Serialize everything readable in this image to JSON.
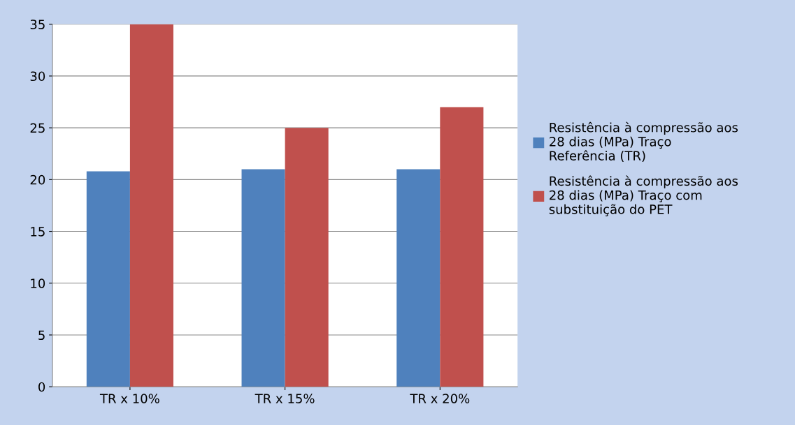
{
  "chart_data": {
    "type": "bar",
    "categories": [
      "TR x 10%",
      "TR x 15%",
      "TR x 20%"
    ],
    "series": [
      {
        "name": "Resistência à compressão aos 28 dias (MPa) Traço Referência (TR)",
        "color": "#4f81bd",
        "values": [
          20.8,
          21,
          21
        ]
      },
      {
        "name": "Resistência à compressão aos 28 dias (MPa) Traço com substituição do PET",
        "color": "#c0504d",
        "values": [
          35,
          25,
          27
        ]
      }
    ],
    "ylim": [
      0,
      35
    ],
    "yticks": [
      0,
      5,
      10,
      15,
      20,
      25,
      30,
      35
    ],
    "grid": "y",
    "legend": "right"
  }
}
